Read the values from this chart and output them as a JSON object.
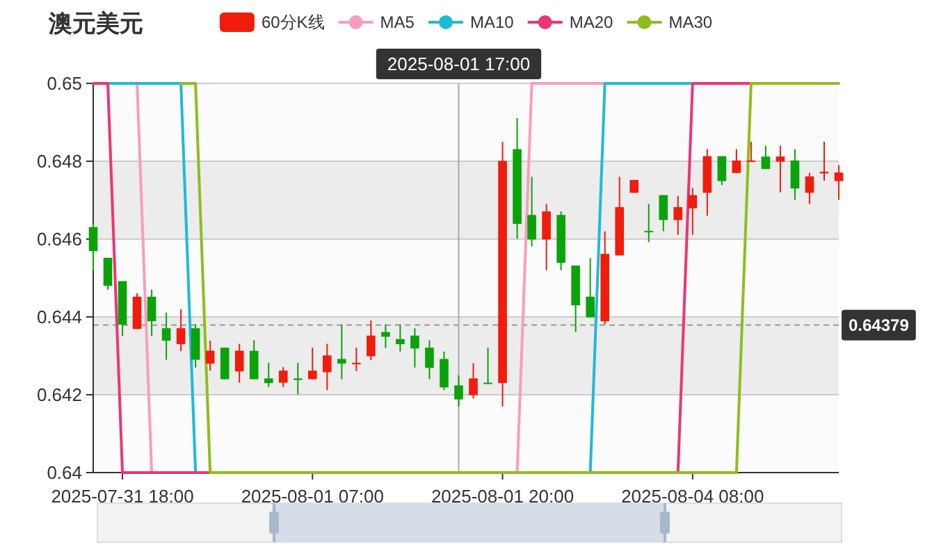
{
  "chart_data": {
    "type": "candlestick",
    "title": "澳元美元",
    "categories": [
      null,
      null,
      "2025-07-31 18:00",
      null,
      null,
      null,
      null,
      null,
      null,
      null,
      null,
      null,
      null,
      null,
      null,
      "2025-08-01 07:00",
      null,
      null,
      null,
      null,
      null,
      null,
      null,
      null,
      null,
      "2025-08-01 17:00",
      null,
      null,
      "2025-08-01 20:00",
      null,
      null,
      null,
      null,
      null,
      null,
      null,
      null,
      null,
      null,
      null,
      null,
      "2025-08-04 08:00",
      null,
      null,
      null,
      null,
      null,
      null,
      null,
      null,
      null,
      null
    ],
    "series": [
      {
        "name": "60分K线",
        "type": "candlestick",
        "color": "#f01c0c",
        "colors": [
          "#0aa30a",
          "#0aa30a",
          "#0aa30a",
          "#f01c0c",
          "#0aa30a",
          "#0aa30a",
          "#f01c0c",
          "#0aa30a",
          "#f01c0c",
          "#0aa30a",
          "#f01c0c",
          "#0aa30a",
          "#0aa30a",
          "#f01c0c",
          "#0aa30a",
          "#f01c0c",
          "#f01c0c",
          "#0aa30a",
          "#f01c0c",
          "#f01c0c",
          "#0aa30a",
          "#0aa30a",
          "#0aa30a",
          "#0aa30a",
          "#0aa30a",
          "#0aa30a",
          "#f01c0c",
          "#0aa30a",
          "#f01c0c",
          "#0aa30a",
          "#0aa30a",
          "#f01c0c",
          "#0aa30a",
          "#0aa30a",
          "#0aa30a",
          "#f01c0c",
          "#f01c0c",
          "#f01c0c",
          "#0aa30a",
          "#0aa30a",
          "#f01c0c",
          "#f01c0c",
          "#f01c0c",
          "#0aa30a",
          "#f01c0c",
          "#f01c0c",
          "#0aa30a",
          "#f01c0c",
          "#0aa30a",
          "#f01c0c",
          "#f01c0c",
          "#f01c0c"
        ],
        "ohlc": [
          [
            0.64631,
            0.64639,
            0.6452,
            0.64569
          ],
          [
            0.64552,
            0.64552,
            0.6447,
            0.6448
          ],
          [
            0.64492,
            0.64492,
            0.64351,
            0.6438
          ],
          [
            0.64369,
            0.64461,
            0.64369,
            0.64452
          ],
          [
            0.64452,
            0.6447,
            0.64351,
            0.64389
          ],
          [
            0.64371,
            0.64411,
            0.6429,
            0.64339
          ],
          [
            0.6433,
            0.6442,
            0.64312,
            0.64371
          ],
          [
            0.64371,
            0.64381,
            0.6427,
            0.6429
          ],
          [
            0.6428,
            0.64339,
            0.64262,
            0.64313
          ],
          [
            0.64321,
            0.64321,
            0.6424,
            0.6424
          ],
          [
            0.6426,
            0.64331,
            0.64231,
            0.64313
          ],
          [
            0.64313,
            0.6434,
            0.6424,
            0.6424
          ],
          [
            0.64242,
            0.64282,
            0.6422,
            0.6423
          ],
          [
            0.64231,
            0.64271,
            0.6422,
            0.64262
          ],
          [
            0.64242,
            0.64282,
            0.64201,
            0.64238
          ],
          [
            0.6424,
            0.64321,
            0.6424,
            0.64262
          ],
          [
            0.64258,
            0.64331,
            0.64212,
            0.64301
          ],
          [
            0.64292,
            0.64381,
            0.6424,
            0.6428
          ],
          [
            0.6428,
            0.64321,
            0.64261,
            0.64282
          ],
          [
            0.64299,
            0.64391,
            0.64289,
            0.64352
          ],
          [
            0.64361,
            0.64381,
            0.6432,
            0.64349
          ],
          [
            0.64343,
            0.64381,
            0.64311,
            0.6433
          ],
          [
            0.64352,
            0.64371,
            0.6427,
            0.64319
          ],
          [
            0.64321,
            0.6434,
            0.6424,
            0.64269
          ],
          [
            0.64292,
            0.64311,
            0.64212,
            0.64219
          ],
          [
            0.64224,
            0.6425,
            0.6417,
            0.64188
          ],
          [
            0.64199,
            0.64281,
            0.6419,
            0.64242
          ],
          [
            0.64231,
            0.64321,
            0.64229,
            0.64229
          ],
          [
            0.6423,
            0.6485,
            0.6417,
            0.64801
          ],
          [
            0.64831,
            0.64911,
            0.64601,
            0.64639
          ],
          [
            0.64662,
            0.6476,
            0.64581,
            0.64599
          ],
          [
            0.64599,
            0.6469,
            0.6452,
            0.64671
          ],
          [
            0.64662,
            0.64671,
            0.6452,
            0.64539
          ],
          [
            0.64532,
            0.64532,
            0.64361,
            0.6443
          ],
          [
            0.64452,
            0.64551,
            0.64399,
            0.64399
          ],
          [
            0.64389,
            0.6462,
            0.64381,
            0.64562
          ],
          [
            0.64558,
            0.6476,
            0.64558,
            0.64682
          ],
          [
            0.64719,
            0.64752,
            0.64719,
            0.64752
          ],
          [
            0.64621,
            0.6469,
            0.64592,
            0.64619
          ],
          [
            0.64713,
            0.64713,
            0.6462,
            0.64649
          ],
          [
            0.64649,
            0.64711,
            0.64611,
            0.64682
          ],
          [
            0.64679,
            0.64731,
            0.64611,
            0.64713
          ],
          [
            0.64719,
            0.64831,
            0.6466,
            0.64813
          ],
          [
            0.64813,
            0.64813,
            0.64739,
            0.64749
          ],
          [
            0.6477,
            0.64831,
            0.6477,
            0.64802
          ],
          [
            0.64799,
            0.6485,
            0.64799,
            0.64802
          ],
          [
            0.64812,
            0.6484,
            0.6478,
            0.6478
          ],
          [
            0.64799,
            0.6484,
            0.6472,
            0.64812
          ],
          [
            0.64802,
            0.64831,
            0.64701,
            0.6473
          ],
          [
            0.64719,
            0.6477,
            0.6469,
            0.64761
          ],
          [
            0.64769,
            0.6485,
            0.6475,
            0.64773
          ],
          [
            0.64749,
            0.6479,
            0.64701,
            0.64771
          ]
        ]
      },
      {
        "name": "MA5",
        "type": "line",
        "color": "#f99dbd",
        "values": [
          null,
          null,
          null,
          0.65,
          0.64,
          null,
          null,
          null,
          null,
          null,
          null,
          null,
          null,
          null,
          null,
          null,
          null,
          null,
          null,
          null,
          null,
          null,
          null,
          null,
          null,
          null,
          null,
          null,
          null,
          0.64,
          0.65,
          0.65,
          0.65,
          0.65,
          0.65,
          0.65,
          null,
          null,
          null,
          null,
          null,
          null,
          null,
          null,
          null,
          null,
          null,
          null,
          null,
          null,
          null,
          null
        ]
      },
      {
        "name": "MA10",
        "type": "line",
        "color": "#1fbad6",
        "values": [
          null,
          0.65,
          0.65,
          0.65,
          0.65,
          0.65,
          0.65,
          0.64,
          null,
          null,
          null,
          null,
          null,
          null,
          null,
          null,
          null,
          null,
          null,
          null,
          null,
          null,
          null,
          null,
          null,
          null,
          null,
          null,
          null,
          null,
          null,
          null,
          null,
          null,
          0.64,
          0.65,
          0.65,
          0.65,
          0.65,
          0.65,
          0.65,
          0.65,
          null,
          null,
          null,
          null,
          null,
          null,
          null,
          null,
          null,
          null
        ]
      },
      {
        "name": "MA20",
        "type": "line",
        "color": "#ec3574",
        "values": [
          0.65,
          0.65,
          0.64,
          0.64,
          0.64,
          0.64,
          0.64,
          0.64,
          0.64,
          null,
          null,
          null,
          null,
          null,
          null,
          null,
          null,
          null,
          null,
          null,
          null,
          null,
          null,
          null,
          null,
          null,
          null,
          null,
          null,
          null,
          null,
          null,
          null,
          null,
          null,
          null,
          null,
          null,
          null,
          null,
          0.64,
          0.65,
          0.65,
          0.65,
          0.65,
          0.65,
          null,
          null,
          null,
          null,
          null,
          null
        ]
      },
      {
        "name": "MA30",
        "type": "line",
        "color": "#8fbd1c",
        "values": [
          null,
          null,
          null,
          null,
          null,
          null,
          0.65,
          0.65,
          0.64,
          0.64,
          0.64,
          0.64,
          0.64,
          0.64,
          0.64,
          0.64,
          0.64,
          0.64,
          0.64,
          0.64,
          0.64,
          0.64,
          0.64,
          0.64,
          0.64,
          0.64,
          0.64,
          0.64,
          0.64,
          0.64,
          0.64,
          0.64,
          0.64,
          0.64,
          0.64,
          0.64,
          0.64,
          0.64,
          0.64,
          0.64,
          0.64,
          0.64,
          0.64,
          0.64,
          0.64,
          0.65,
          0.65,
          0.65,
          0.65,
          0.65,
          0.65,
          0.65
        ]
      }
    ],
    "ylim": [
      0.64,
      0.65
    ],
    "yticks": [
      0.64,
      0.642,
      0.644,
      0.646,
      0.648,
      0.65
    ],
    "grid": "y",
    "legend": "top",
    "ref_lines": [
      {
        "axis": "y",
        "value": 0.64379,
        "label": "0.64379",
        "color": "#999999",
        "line_style": "dashed"
      },
      {
        "axis": "x",
        "value": "2025-08-01 17:00",
        "color": "#aaaaaa"
      }
    ]
  }
}
